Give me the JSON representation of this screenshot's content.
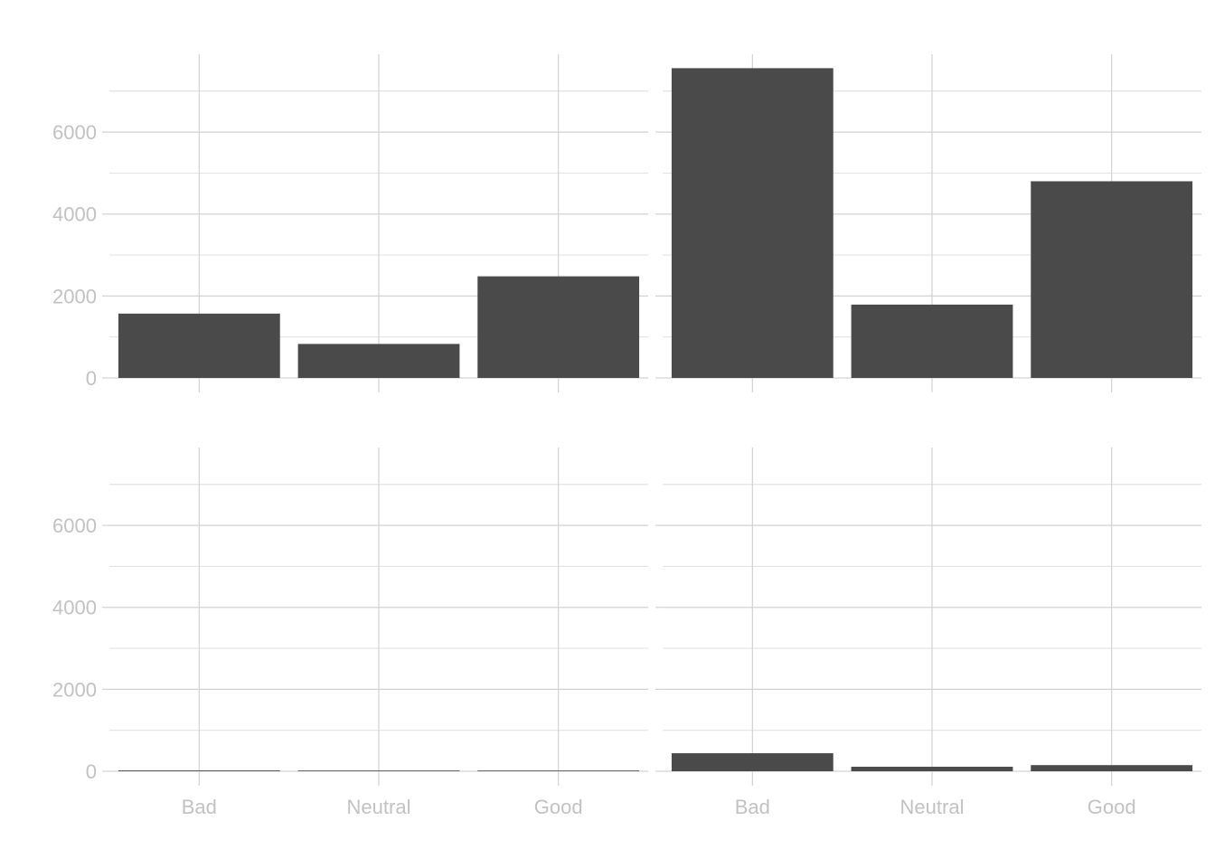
{
  "chart_data": [
    {
      "type": "bar",
      "panel": "top-left",
      "categories": [
        "Bad",
        "Neutral",
        "Good"
      ],
      "values": [
        1570,
        830,
        2480
      ],
      "title": "",
      "xlabel": "",
      "ylabel": "",
      "ylim": [
        0,
        7900
      ],
      "yticks": [
        0,
        2000,
        4000,
        6000
      ],
      "show_x_tick_labels": false,
      "show_y_tick_labels": true,
      "grid": true,
      "bar_color": "#4a4a4a"
    },
    {
      "type": "bar",
      "panel": "top-right",
      "categories": [
        "Bad",
        "Neutral",
        "Good"
      ],
      "values": [
        7560,
        1790,
        4800
      ],
      "title": "",
      "xlabel": "",
      "ylabel": "",
      "ylim": [
        0,
        7900
      ],
      "yticks": [
        0,
        2000,
        4000,
        6000
      ],
      "show_x_tick_labels": false,
      "show_y_tick_labels": false,
      "grid": true,
      "bar_color": "#4a4a4a"
    },
    {
      "type": "bar",
      "panel": "bottom-left",
      "categories": [
        "Bad",
        "Neutral",
        "Good"
      ],
      "values": [
        20,
        12,
        15
      ],
      "title": "",
      "xlabel": "",
      "ylabel": "",
      "ylim": [
        0,
        7900
      ],
      "yticks": [
        0,
        2000,
        4000,
        6000
      ],
      "show_x_tick_labels": true,
      "show_y_tick_labels": true,
      "grid": true,
      "bar_color": "#4a4a4a"
    },
    {
      "type": "bar",
      "panel": "bottom-right",
      "categories": [
        "Bad",
        "Neutral",
        "Good"
      ],
      "values": [
        440,
        110,
        150
      ],
      "title": "",
      "xlabel": "",
      "ylabel": "",
      "ylim": [
        0,
        7900
      ],
      "yticks": [
        0,
        2000,
        4000,
        6000
      ],
      "show_x_tick_labels": true,
      "show_y_tick_labels": false,
      "grid": true,
      "bar_color": "#4a4a4a"
    }
  ],
  "colors": {
    "background": "#ffffff",
    "grid_major": "#d2d2d2",
    "grid_minor": "#e3e3e3",
    "tick_text": "#c2c2c2",
    "bar": "#4a4a4a"
  }
}
